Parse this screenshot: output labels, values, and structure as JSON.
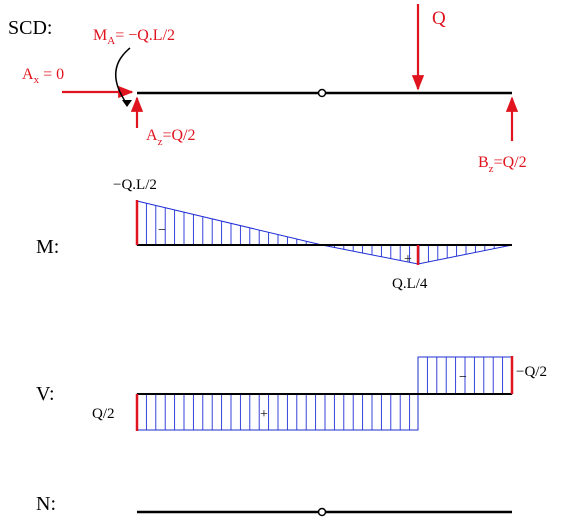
{
  "colors": {
    "beam": "#000000",
    "load": "#e0141e",
    "hatch": "#1f2fd6"
  },
  "labels": {
    "scd": "SCD:",
    "m": "M:",
    "v": "V:",
    "n": "N:"
  },
  "loads": {
    "q": "Q",
    "ax": {
      "main": "A",
      "sub": "x",
      "rest": " = 0"
    },
    "az": {
      "main": "A",
      "sub": "z",
      "rest": "=Q/2"
    },
    "bz": {
      "main": "B",
      "sub": "z",
      "rest": "=Q/2"
    },
    "ma": {
      "main": "M",
      "sub": "A",
      "rest": "= −Q.L/2"
    }
  },
  "moment": {
    "left_value": "−Q.L/2",
    "load_value": "Q.L/4",
    "neg_sign": "−",
    "pos_sign": "+"
  },
  "shear": {
    "left_value": "Q/2",
    "right_value": "−Q/2",
    "pos_sign": "+",
    "neg_sign": "−"
  }
}
